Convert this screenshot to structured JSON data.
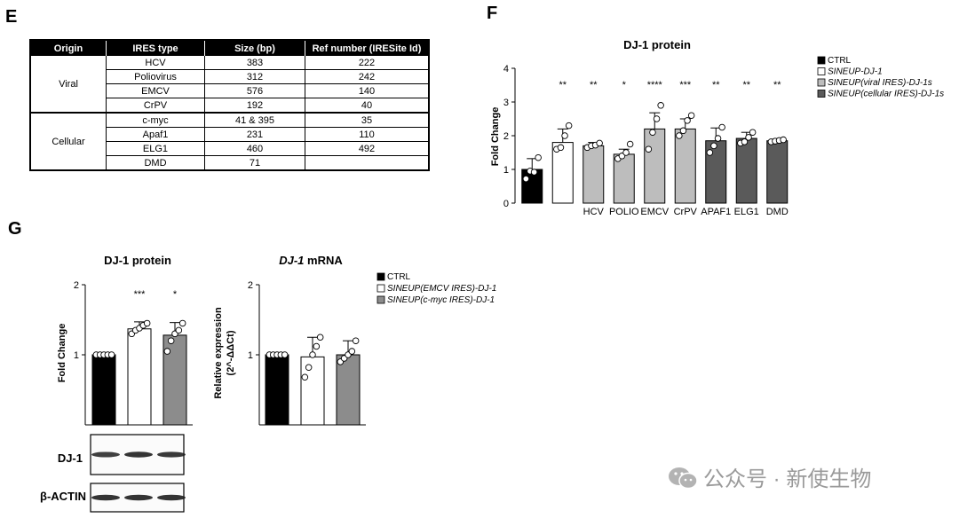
{
  "panels": {
    "e": "E",
    "f": "F",
    "g": "G"
  },
  "table_e": {
    "headers": [
      "Origin",
      "IRES type",
      "Size (bp)",
      "Ref number (IRESite Id)"
    ],
    "groups": [
      {
        "origin": "Viral",
        "rows": [
          [
            "HCV",
            "383",
            "222"
          ],
          [
            "Poliovirus",
            "312",
            "242"
          ],
          [
            "EMCV",
            "576",
            "140"
          ],
          [
            "CrPV",
            "192",
            "40"
          ]
        ]
      },
      {
        "origin": "Cellular",
        "rows": [
          [
            "c-myc",
            "41 & 395",
            "35"
          ],
          [
            "Apaf1",
            "231",
            "110"
          ],
          [
            "ELG1",
            "460",
            "492"
          ],
          [
            "DMD",
            "71",
            ""
          ]
        ]
      }
    ]
  },
  "chart_data": [
    {
      "id": "F",
      "type": "bar",
      "title": "DJ-1 protein",
      "ylabel": "Fold Change",
      "ylim": [
        0,
        4
      ],
      "yticks": [
        "0",
        "1",
        "2",
        "3",
        "4"
      ],
      "categories": [
        "",
        "",
        "HCV",
        "POLIO",
        "EMCV",
        "CrPV",
        "APAF1",
        "ELG1",
        "DMD"
      ],
      "values": [
        1.0,
        1.8,
        1.7,
        1.45,
        2.2,
        2.2,
        1.85,
        1.92,
        1.85
      ],
      "errors": [
        0.32,
        0.4,
        0.1,
        0.15,
        0.48,
        0.3,
        0.38,
        0.18,
        0.04
      ],
      "points": [
        [
          0.72,
          0.95,
          0.92,
          1.35
        ],
        [
          1.6,
          1.65,
          2.0,
          2.3
        ],
        [
          1.65,
          1.7,
          1.72,
          1.78
        ],
        [
          1.32,
          1.4,
          1.5,
          1.75
        ],
        [
          1.6,
          2.1,
          2.5,
          2.9
        ],
        [
          2.0,
          2.15,
          2.45,
          2.6
        ],
        [
          1.5,
          1.7,
          1.92,
          2.25
        ],
        [
          1.78,
          1.82,
          1.95,
          2.1
        ],
        [
          1.82,
          1.84,
          1.86,
          1.88
        ]
      ],
      "significance": [
        "",
        "**",
        "**",
        "*",
        "****",
        "***",
        "**",
        "**",
        "**"
      ],
      "colors": [
        "#000000",
        "#ffffff",
        "#bdbdbd",
        "#bdbdbd",
        "#bdbdbd",
        "#bdbdbd",
        "#5a5a5a",
        "#5a5a5a",
        "#5a5a5a"
      ],
      "legend": [
        {
          "label": "CTRL",
          "color": "#000000",
          "italic": false
        },
        {
          "label": "SINEUP-DJ-1",
          "color": "#ffffff",
          "italic": true
        },
        {
          "label": "SINEUP(viral IRES)-DJ-1s",
          "color": "#bdbdbd",
          "italic": true
        },
        {
          "label": "SINEUP(cellular IRES)-DJ-1s",
          "color": "#5a5a5a",
          "italic": true
        }
      ]
    },
    {
      "id": "G-protein",
      "type": "bar",
      "title": "DJ-1 protein",
      "ylabel": "Fold Change",
      "ylim": [
        0,
        2
      ],
      "yticks": [
        "1",
        "2"
      ],
      "categories": [
        "",
        "",
        ""
      ],
      "values": [
        1.0,
        1.37,
        1.28
      ],
      "errors": [
        0.02,
        0.1,
        0.18
      ],
      "points": [
        [
          1.0,
          1.0,
          1.0,
          1.0,
          1.0
        ],
        [
          1.3,
          1.35,
          1.38,
          1.42,
          1.45
        ],
        [
          1.05,
          1.2,
          1.3,
          1.35,
          1.45
        ]
      ],
      "significance": [
        "",
        "***",
        "*"
      ],
      "colors": [
        "#000000",
        "#ffffff",
        "#8c8c8c"
      ]
    },
    {
      "id": "G-mRNA",
      "type": "bar",
      "title_italic": "DJ-1",
      "title_rest": " mRNA",
      "ylabel_line1": "Relative expression",
      "ylabel_line2": "(2^-ΔΔCt)",
      "ylim": [
        0,
        2
      ],
      "yticks": [
        "1",
        "2"
      ],
      "categories": [
        "",
        "",
        ""
      ],
      "values": [
        1.0,
        0.97,
        1.0
      ],
      "errors": [
        0.02,
        0.28,
        0.2
      ],
      "points": [
        [
          1.0,
          1.0,
          1.0,
          1.0,
          1.0
        ],
        [
          0.68,
          0.82,
          1.0,
          1.12,
          1.25
        ],
        [
          0.9,
          0.95,
          1.0,
          1.05,
          1.2
        ]
      ],
      "significance": [
        "",
        "",
        ""
      ],
      "colors": [
        "#000000",
        "#ffffff",
        "#8c8c8c"
      ],
      "legend": [
        {
          "label": "CTRL",
          "color": "#000000",
          "italic": false
        },
        {
          "label": "SINEUP(EMCV IRES)-DJ-1",
          "color": "#ffffff",
          "italic": true
        },
        {
          "label": "SINEUP(c-myc IRES)-DJ-1",
          "color": "#8c8c8c",
          "italic": true
        }
      ]
    }
  ],
  "blots": [
    {
      "label": "DJ-1",
      "intensity": [
        0.85,
        0.9,
        0.88
      ]
    },
    {
      "label": "β-ACTIN",
      "intensity": [
        0.9,
        0.9,
        0.9
      ]
    }
  ],
  "watermark": "公众号 · 新使生物"
}
